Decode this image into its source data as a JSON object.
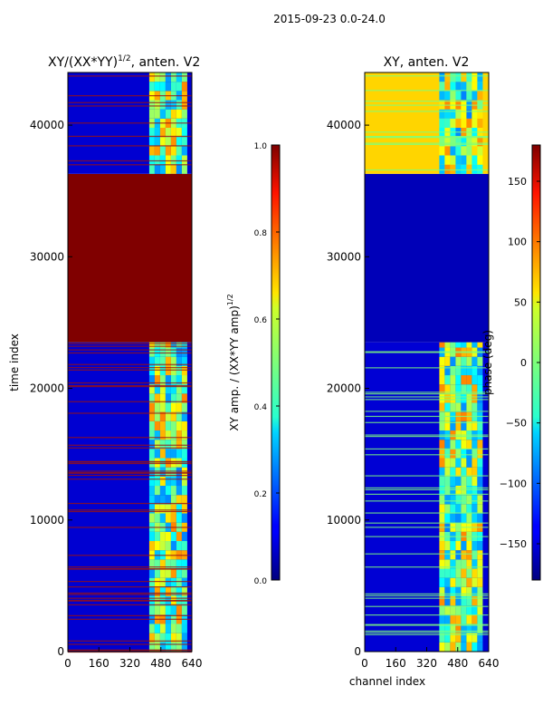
{
  "suptitle": "2015-09-23 0.0-24.0",
  "chart_data": [
    {
      "type": "heatmap",
      "title_main": "XY/(XX*YY)",
      "title_exp": "1/2",
      "title_rest": ", anten. V2",
      "xlabel": "",
      "ylabel": "time index",
      "xlim": [
        0,
        640
      ],
      "ylim": [
        0,
        44000
      ],
      "xticks": [
        "0",
        "160",
        "320",
        "480",
        "640"
      ],
      "xtick_values": [
        0,
        160,
        320,
        480,
        640
      ],
      "yticks": [
        "0",
        "10000",
        "20000",
        "30000",
        "40000"
      ],
      "ytick_values": [
        0,
        10000,
        20000,
        30000,
        40000
      ],
      "colorbar": {
        "label_main": "XY amp. / (XX*YY amp)",
        "label_exp": "1/2",
        "range": [
          0,
          1
        ],
        "ticks": [
          "0.0",
          "0.2",
          "0.4",
          "0.6",
          "0.8",
          "1.0"
        ],
        "tick_values": [
          0,
          0.2,
          0.4,
          0.6,
          0.8,
          1.0
        ]
      },
      "bands": [
        {
          "from": 0,
          "to": 23500,
          "value": 0.08
        },
        {
          "from": 23500,
          "to": 36300,
          "value": 1.0
        },
        {
          "from": 36300,
          "to": 44000,
          "value": 0.08
        }
      ],
      "signal_channels": [
        420,
        600
      ]
    },
    {
      "type": "heatmap",
      "title": "XY, anten. V2",
      "xlabel": "channel index",
      "ylabel": "",
      "xlim": [
        0,
        640
      ],
      "ylim": [
        0,
        44000
      ],
      "xticks": [
        "0",
        "160",
        "320",
        "480",
        "640"
      ],
      "xtick_values": [
        0,
        160,
        320,
        480,
        640
      ],
      "yticks": [
        "0",
        "10000",
        "20000",
        "30000",
        "40000"
      ],
      "ytick_values": [
        0,
        10000,
        20000,
        30000,
        40000
      ],
      "colorbar": {
        "label": "phase (deg)",
        "range": [
          -180,
          180
        ],
        "ticks": [
          "−150",
          "−100",
          "−50",
          "0",
          "50",
          "100",
          "150"
        ],
        "tick_values": [
          -150,
          -100,
          -50,
          0,
          50,
          100,
          150
        ]
      },
      "bands": [
        {
          "from": 0,
          "to": 23500,
          "value": -150
        },
        {
          "from": 23500,
          "to": 36300,
          "value": -160
        },
        {
          "from": 36300,
          "to": 44000,
          "value": 60
        }
      ],
      "signal_channels": [
        385,
        600
      ]
    }
  ]
}
